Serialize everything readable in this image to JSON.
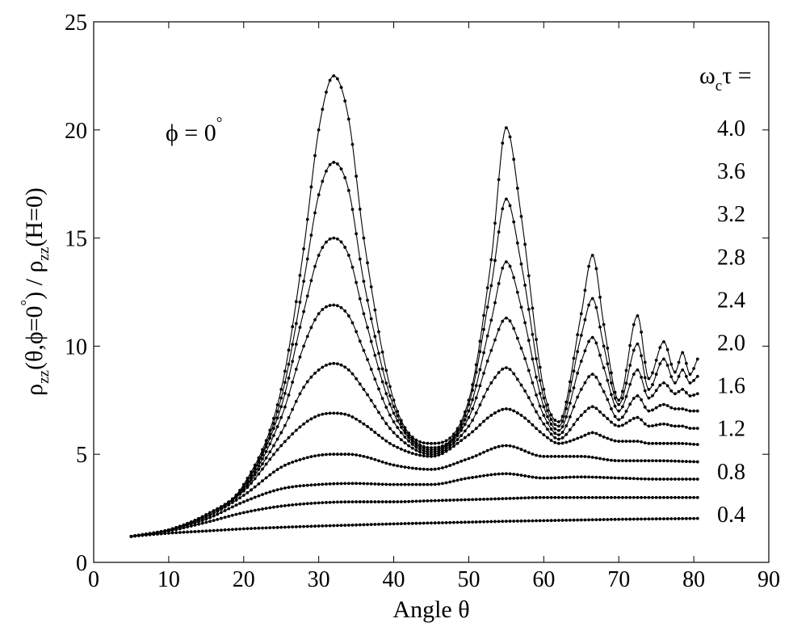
{
  "chart_data": {
    "type": "line",
    "xlabel": "Angle θ",
    "ylabel": {
      "parts": [
        "ρ",
        "zz",
        "(θ,ϕ=0",
        "°",
        ") / ρ",
        "zz",
        "(H=0)"
      ]
    },
    "xlim": [
      0,
      90
    ],
    "ylim": [
      0,
      25
    ],
    "xticks": [
      0,
      10,
      20,
      30,
      40,
      50,
      60,
      70,
      80,
      90
    ],
    "yticks": [
      0,
      5,
      10,
      15,
      20,
      25
    ],
    "grid": false,
    "annotations": {
      "phi": {
        "symbol": "ϕ",
        "equals": " = 0",
        "degree": "°"
      },
      "omega_header": {
        "omega": "ω",
        "sub": "c",
        "rest": "τ ="
      }
    },
    "series_labels": [
      "4.0",
      "3.6",
      "3.2",
      "2.8",
      "2.4",
      "2.0",
      "1.6",
      "1.2",
      "0.8",
      "0.4"
    ],
    "series": [
      {
        "name": "4.0",
        "x": [
          5,
          10,
          15,
          20,
          25,
          28,
          30,
          32,
          34,
          36,
          40,
          45,
          50,
          53,
          55,
          57,
          60,
          62,
          65,
          66.5,
          68,
          70,
          72.5,
          74,
          76,
          77.5,
          78.5,
          79.5,
          80.5
        ],
        "y": [
          1.2,
          1.5,
          2.2,
          3.6,
          8.0,
          14.5,
          20.0,
          22.5,
          20.5,
          15.0,
          7.5,
          5.5,
          7.5,
          14.0,
          20.1,
          16.0,
          8.0,
          6.5,
          11.5,
          14.2,
          11.0,
          7.5,
          11.4,
          8.5,
          10.2,
          8.8,
          9.7,
          8.7,
          9.4
        ]
      },
      {
        "name": "3.6",
        "x": [
          5,
          10,
          15,
          20,
          25,
          28,
          30,
          32,
          34,
          36,
          40,
          45,
          50,
          53,
          55,
          57,
          60,
          62,
          65,
          66.5,
          68,
          70,
          72.5,
          74,
          76,
          77.5,
          78.5,
          79.5,
          80.5
        ],
        "y": [
          1.2,
          1.5,
          2.2,
          3.5,
          7.6,
          13.0,
          17.0,
          18.5,
          17.2,
          13.0,
          7.2,
          5.3,
          7.3,
          12.8,
          16.8,
          13.8,
          7.6,
          6.3,
          10.5,
          12.2,
          10.0,
          7.3,
          10.1,
          8.0,
          9.4,
          8.3,
          8.9,
          8.3,
          8.6
        ]
      },
      {
        "name": "3.2",
        "x": [
          5,
          10,
          15,
          20,
          25,
          28,
          30,
          32,
          34,
          36,
          40,
          45,
          50,
          53,
          55,
          57,
          60,
          62,
          65,
          66.5,
          68,
          70,
          72.5,
          74,
          76,
          77.5,
          78.5,
          79.5,
          80.5
        ],
        "y": [
          1.2,
          1.5,
          2.2,
          3.5,
          7.2,
          11.6,
          14.2,
          15.0,
          14.2,
          11.5,
          6.9,
          5.2,
          7.0,
          11.2,
          13.9,
          11.8,
          7.2,
          6.1,
          9.3,
          10.4,
          9.0,
          7.0,
          8.9,
          7.6,
          8.3,
          7.8,
          8.0,
          7.7,
          7.8
        ]
      },
      {
        "name": "2.8",
        "x": [
          5,
          10,
          15,
          20,
          25,
          28,
          30,
          32,
          34,
          36,
          40,
          45,
          50,
          53,
          55,
          57,
          60,
          62,
          65,
          66.5,
          68,
          70,
          72.5,
          74,
          76,
          77.5,
          78.5,
          79.5,
          80.5
        ],
        "y": [
          1.2,
          1.5,
          2.2,
          3.4,
          6.7,
          10.0,
          11.5,
          11.9,
          11.4,
          9.8,
          6.5,
          5.1,
          6.7,
          9.8,
          11.3,
          9.9,
          6.8,
          5.9,
          8.0,
          8.7,
          7.9,
          6.6,
          7.7,
          7.0,
          7.3,
          7.1,
          7.1,
          7.0,
          7.0
        ]
      },
      {
        "name": "2.4",
        "x": [
          5,
          10,
          15,
          20,
          25,
          28,
          30,
          32,
          34,
          36,
          40,
          45,
          50,
          53,
          55,
          57,
          60,
          62,
          65,
          66.5,
          68,
          70,
          72.5,
          74,
          76,
          77.5,
          78.5,
          79.5,
          80.5
        ],
        "y": [
          1.2,
          1.5,
          2.2,
          3.4,
          6.0,
          8.1,
          8.9,
          9.2,
          8.9,
          8.0,
          6.0,
          5.0,
          6.3,
          8.3,
          9.0,
          8.2,
          6.4,
          5.7,
          6.8,
          7.2,
          6.8,
          6.3,
          6.7,
          6.3,
          6.4,
          6.3,
          6.3,
          6.2,
          6.2
        ]
      },
      {
        "name": "2.0",
        "x": [
          5,
          10,
          15,
          20,
          25,
          28,
          30,
          32,
          34,
          36,
          40,
          45,
          50,
          53,
          55,
          57,
          60,
          62,
          65,
          66.5,
          68,
          70,
          72.5,
          74,
          76,
          78,
          80.5
        ],
        "y": [
          1.2,
          1.5,
          2.2,
          3.3,
          5.4,
          6.4,
          6.8,
          6.9,
          6.8,
          6.4,
          5.4,
          4.9,
          5.9,
          6.8,
          7.1,
          6.8,
          5.9,
          5.5,
          5.8,
          6.0,
          5.8,
          5.6,
          5.6,
          5.5,
          5.5,
          5.5,
          5.45
        ]
      },
      {
        "name": "1.6",
        "x": [
          5,
          10,
          15,
          20,
          25,
          28,
          30,
          32,
          34,
          36,
          40,
          45,
          50,
          55,
          60,
          65,
          70,
          75,
          80.5
        ],
        "y": [
          1.2,
          1.5,
          2.1,
          3.1,
          4.4,
          4.8,
          4.95,
          5.0,
          5.0,
          4.9,
          4.5,
          4.3,
          4.8,
          5.4,
          4.9,
          4.9,
          4.7,
          4.7,
          4.65
        ]
      },
      {
        "name": "1.2",
        "x": [
          5,
          10,
          15,
          20,
          25,
          30,
          35,
          40,
          45,
          50,
          55,
          60,
          65,
          70,
          75,
          80.5
        ],
        "y": [
          1.2,
          1.5,
          2.0,
          2.8,
          3.4,
          3.6,
          3.65,
          3.6,
          3.6,
          3.9,
          4.1,
          3.9,
          3.95,
          3.9,
          3.85,
          3.85
        ]
      },
      {
        "name": "0.8",
        "x": [
          5,
          10,
          15,
          20,
          25,
          30,
          35,
          40,
          45,
          50,
          55,
          60,
          65,
          70,
          75,
          80.5
        ],
        "y": [
          1.2,
          1.45,
          1.85,
          2.3,
          2.6,
          2.75,
          2.8,
          2.8,
          2.85,
          2.9,
          2.95,
          3.0,
          3.0,
          3.0,
          3.0,
          3.0
        ]
      },
      {
        "name": "0.4",
        "x": [
          5,
          10,
          15,
          20,
          25,
          30,
          35,
          40,
          45,
          50,
          55,
          60,
          65,
          70,
          75,
          80.5
        ],
        "y": [
          1.2,
          1.35,
          1.45,
          1.55,
          1.62,
          1.68,
          1.73,
          1.78,
          1.82,
          1.86,
          1.9,
          1.93,
          1.96,
          1.99,
          2.01,
          2.03
        ]
      }
    ]
  }
}
